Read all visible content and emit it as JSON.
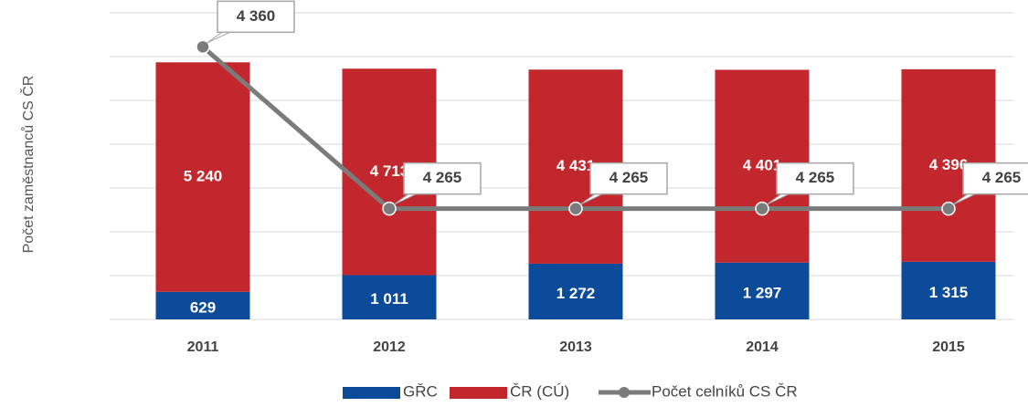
{
  "chart_data": {
    "type": "bar",
    "stacked": true,
    "y_label": "Počet zaměstnanců CS ČR",
    "categories": [
      "2011",
      "2012",
      "2013",
      "2014",
      "2015"
    ],
    "ylim": [
      0,
      7000
    ],
    "yticks": [
      0,
      1000,
      2000,
      3000,
      4000,
      5000,
      6000,
      7000
    ],
    "y2lim": [
      4200,
      4380
    ],
    "grid": true,
    "legend": "bottom",
    "series": [
      {
        "name": "GŘC",
        "color": "#0c4a9a",
        "values": [
          629,
          1011,
          1272,
          1297,
          1315
        ],
        "value_labels": [
          "629",
          "1 011",
          "1 272",
          "1 297",
          "1 315"
        ]
      },
      {
        "name": "ČR (CÚ)",
        "color": "#c1272d",
        "values": [
          5240,
          4713,
          4431,
          4401,
          4396
        ],
        "value_labels": [
          "5 240",
          "4 713",
          "4 431",
          "4 401",
          "4 396"
        ]
      },
      {
        "name": "Počet celníků CS ČR",
        "type": "line",
        "axis": "y2",
        "color": "#7b7b7b",
        "values": [
          4360,
          4265,
          4265,
          4265,
          4265
        ],
        "value_labels": [
          "4 360",
          "4 265",
          "4 265",
          "4 265",
          "4 265"
        ]
      }
    ]
  }
}
